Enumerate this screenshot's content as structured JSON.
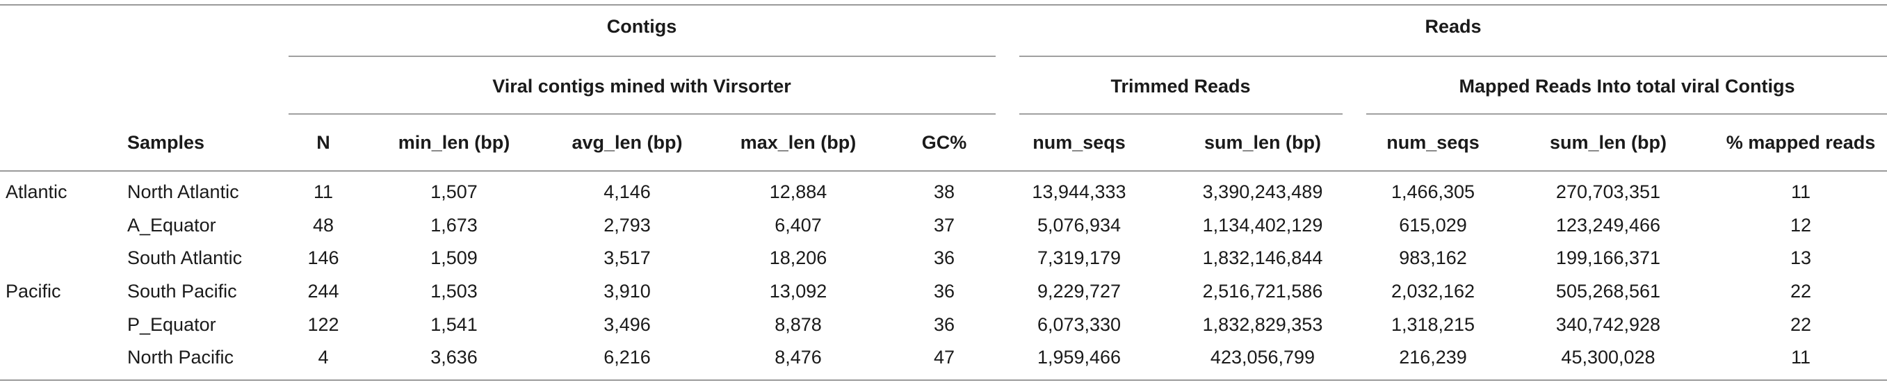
{
  "header": {
    "contigs": "Contigs",
    "reads": "Reads",
    "viral_contigs": "Viral contigs mined with Virsorter",
    "trimmed_reads": "Trimmed Reads",
    "mapped_reads": "Mapped Reads Into total viral Contigs"
  },
  "columns": {
    "samples": "Samples",
    "n": "N",
    "min_len": "min_len (bp)",
    "avg_len": "avg_len (bp)",
    "max_len": "max_len (bp)",
    "gc": "GC%",
    "trim_num_seqs": "num_seqs",
    "trim_sum_len": "sum_len (bp)",
    "map_num_seqs": "num_seqs",
    "map_sum_len": "sum_len (bp)",
    "pct_mapped": "% mapped reads"
  },
  "rows": [
    {
      "region": "Atlantic",
      "sample": "North Atlantic",
      "n": "11",
      "min_len": "1,507",
      "avg_len": "4,146",
      "max_len": "12,884",
      "gc": "38",
      "trim_num_seqs": "13,944,333",
      "trim_sum_len": "3,390,243,489",
      "map_num_seqs": "1,466,305",
      "map_sum_len": "270,703,351",
      "pct_mapped": "11"
    },
    {
      "region": "",
      "sample": "A_Equator",
      "n": "48",
      "min_len": "1,673",
      "avg_len": "2,793",
      "max_len": "6,407",
      "gc": "37",
      "trim_num_seqs": "5,076,934",
      "trim_sum_len": "1,134,402,129",
      "map_num_seqs": "615,029",
      "map_sum_len": "123,249,466",
      "pct_mapped": "12"
    },
    {
      "region": "",
      "sample": "South Atlantic",
      "n": "146",
      "min_len": "1,509",
      "avg_len": "3,517",
      "max_len": "18,206",
      "gc": "36",
      "trim_num_seqs": "7,319,179",
      "trim_sum_len": "1,832,146,844",
      "map_num_seqs": "983,162",
      "map_sum_len": "199,166,371",
      "pct_mapped": "13"
    },
    {
      "region": "Pacific",
      "sample": "South Pacific",
      "n": "244",
      "min_len": "1,503",
      "avg_len": "3,910",
      "max_len": "13,092",
      "gc": "36",
      "trim_num_seqs": "9,229,727",
      "trim_sum_len": "2,516,721,586",
      "map_num_seqs": "2,032,162",
      "map_sum_len": "505,268,561",
      "pct_mapped": "22"
    },
    {
      "region": "",
      "sample": "P_Equator",
      "n": "122",
      "min_len": "1,541",
      "avg_len": "3,496",
      "max_len": "8,878",
      "gc": "36",
      "trim_num_seqs": "6,073,330",
      "trim_sum_len": "1,832,829,353",
      "map_num_seqs": "1,318,215",
      "map_sum_len": "340,742,928",
      "pct_mapped": "22"
    },
    {
      "region": "",
      "sample": "North Pacific",
      "n": "4",
      "min_len": "3,636",
      "avg_len": "6,216",
      "max_len": "8,476",
      "gc": "47",
      "trim_num_seqs": "1,959,466",
      "trim_sum_len": "423,056,799",
      "map_num_seqs": "216,239",
      "map_sum_len": "45,300,028",
      "pct_mapped": "11"
    }
  ]
}
